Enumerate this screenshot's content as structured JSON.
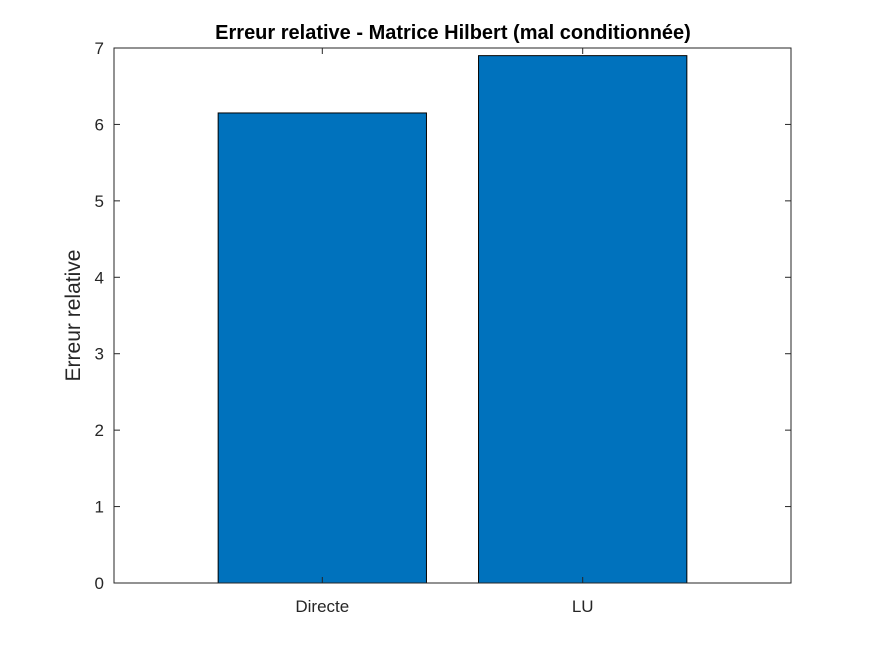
{
  "chart_data": {
    "type": "bar",
    "title": "Erreur relative - Matrice Hilbert (mal conditionnée)",
    "xlabel": "",
    "ylabel": "Erreur relative",
    "categories": [
      "Directe",
      "LU"
    ],
    "values": [
      6.15,
      6.9
    ],
    "ylim": [
      0,
      7
    ],
    "yticks": [
      0,
      1,
      2,
      3,
      4,
      5,
      6,
      7
    ],
    "xlim": [
      0.2,
      2.8
    ],
    "bar_width": 0.8,
    "bar_color": "#0072BD",
    "grid": false,
    "legend": "none"
  }
}
